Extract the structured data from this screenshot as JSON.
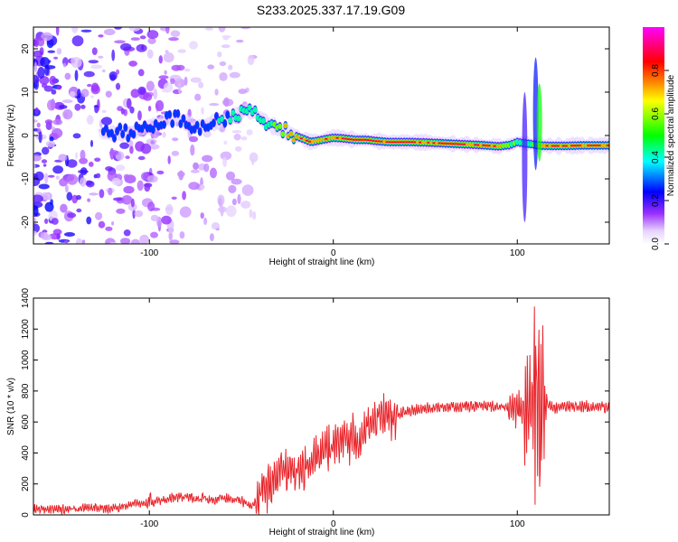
{
  "figure": {
    "title": "S233.2025.337.17.19.G09"
  },
  "chart_data": [
    {
      "type": "heatmap",
      "name": "spectrogram",
      "xlabel": "Height of straight line (km)",
      "ylabel": "Frequency (Hz)",
      "xlim": [
        -163,
        150
      ],
      "ylim": [
        -25,
        25
      ],
      "xticks": [
        -100,
        0,
        100
      ],
      "yticks": [
        -20,
        -10,
        0,
        10,
        20
      ],
      "grid": false,
      "colorbar": {
        "label": "Normalized spectral amplitude",
        "range": [
          0,
          1
        ],
        "ticks": [
          "0.0",
          "0.2",
          "0.4",
          "0.6",
          "0.8"
        ],
        "colors": [
          "#ffffff",
          "#9b30ff",
          "#0000ff",
          "#00ffff",
          "#00ff00",
          "#ffff00",
          "#ff0000",
          "#ff00ff"
        ]
      },
      "ridge": {
        "x": [
          -125,
          -115,
          -105,
          -95,
          -85,
          -75,
          -65,
          -55,
          -48,
          -42,
          -36,
          -30,
          -24,
          -18,
          -12,
          -6,
          0,
          6,
          12,
          18,
          24,
          30,
          40,
          50,
          60,
          70,
          80,
          90,
          96,
          100,
          104,
          108,
          112,
          118,
          126,
          134,
          142,
          150
        ],
        "y": [
          0.5,
          0.5,
          1,
          3,
          4,
          2,
          3,
          4,
          6,
          5,
          3,
          1.5,
          0.5,
          -0.5,
          -1.5,
          -1,
          -0.5,
          -0.7,
          -1,
          -1,
          -1.3,
          -1.5,
          -1.5,
          -1.6,
          -1.8,
          -2,
          -2.2,
          -2.5,
          -2.2,
          -1.5,
          -1.8,
          -2,
          -2.3,
          -2.4,
          -2.4,
          -2.3,
          -2.3,
          -2.3
        ],
        "amp": [
          0.3,
          0.3,
          0.35,
          0.35,
          0.4,
          0.35,
          0.4,
          0.45,
          0.5,
          0.5,
          0.55,
          0.7,
          0.8,
          0.85,
          0.9,
          0.85,
          0.9,
          0.92,
          0.95,
          0.95,
          0.95,
          0.98,
          1,
          0.95,
          0.95,
          0.95,
          0.97,
          0.9,
          0.6,
          0.55,
          0.5,
          0.6,
          0.8,
          0.95,
          0.98,
          0.95,
          0.95,
          0.95
        ]
      }
    },
    {
      "type": "line",
      "name": "snr",
      "xlabel": "Height of straight line (km)",
      "ylabel": "SNR (10 * v/v)",
      "xlim": [
        -163,
        150
      ],
      "ylim": [
        0,
        1400
      ],
      "xticks": [
        -100,
        0,
        100
      ],
      "yticks": [
        0,
        200,
        400,
        600,
        800,
        1000,
        1200,
        1400
      ],
      "grid": false,
      "color": "#e8242a",
      "series": [
        {
          "name": "SNR",
          "x": [
            -163,
            -150,
            -140,
            -130,
            -120,
            -112,
            -105,
            -100,
            -95,
            -90,
            -85,
            -80,
            -75,
            -70,
            -65,
            -60,
            -55,
            -50,
            -45,
            -42,
            -40,
            -38,
            -35,
            -33,
            -30,
            -27,
            -24,
            -21,
            -18,
            -15,
            -12,
            -9,
            -6,
            -3,
            0,
            3,
            6,
            9,
            12,
            15,
            18,
            21,
            24,
            27,
            30,
            35,
            40,
            45,
            50,
            55,
            60,
            65,
            70,
            75,
            80,
            85,
            90,
            95,
            98,
            100,
            102,
            104,
            106,
            108,
            110,
            112,
            114,
            116,
            118,
            120,
            125,
            130,
            135,
            140,
            145,
            150
          ],
          "y": [
            40,
            35,
            40,
            45,
            40,
            60,
            80,
            70,
            90,
            100,
            110,
            120,
            100,
            110,
            90,
            110,
            100,
            90,
            60,
            80,
            100,
            150,
            200,
            230,
            250,
            280,
            290,
            300,
            320,
            330,
            350,
            380,
            400,
            430,
            420,
            460,
            480,
            470,
            500,
            520,
            550,
            580,
            600,
            620,
            640,
            660,
            670,
            680,
            690,
            690,
            695,
            700,
            700,
            700,
            705,
            705,
            700,
            700,
            690,
            700,
            650,
            700,
            750,
            720,
            700,
            650,
            700,
            720,
            700,
            690,
            700,
            700,
            700,
            700,
            700,
            700
          ]
        }
      ]
    }
  ]
}
